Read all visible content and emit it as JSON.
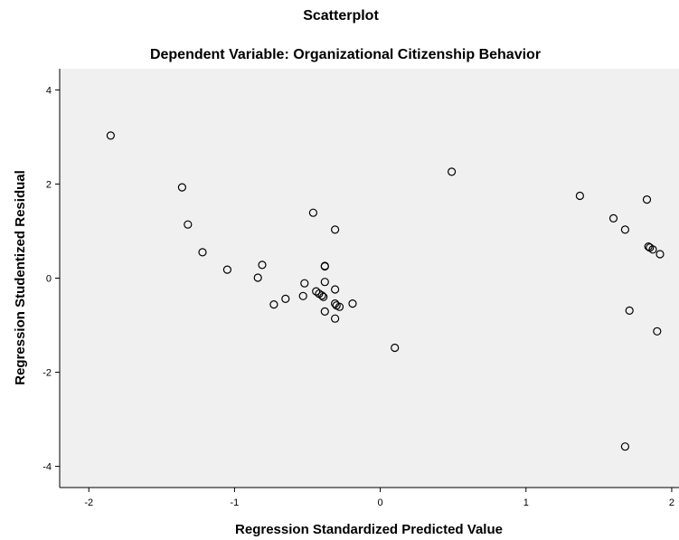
{
  "chart_data": {
    "type": "scatter",
    "title": "Scatterplot",
    "subtitle": "Dependent Variable: Organizational Citizenship Behavior",
    "xlabel": "Regression Standardized Predicted Value",
    "ylabel": "Regression Studentized Residual",
    "xlim": [
      -2.2,
      2.05
    ],
    "ylim": [
      -4.45,
      4.45
    ],
    "x_ticks": [
      -2,
      -1,
      0,
      1,
      2
    ],
    "y_ticks": [
      -4,
      -2,
      0,
      2,
      4
    ],
    "grid": false,
    "colors": {
      "plot_background": "#f0f0f0",
      "marker_edge": "#000000",
      "frame": "#000000"
    },
    "points": [
      {
        "x": -1.85,
        "y": 3.03
      },
      {
        "x": -1.36,
        "y": 1.93
      },
      {
        "x": -1.32,
        "y": 1.14
      },
      {
        "x": -1.22,
        "y": 0.55
      },
      {
        "x": -1.05,
        "y": 0.18
      },
      {
        "x": -0.81,
        "y": 0.28
      },
      {
        "x": -0.84,
        "y": 0.01
      },
      {
        "x": -0.73,
        "y": -0.56
      },
      {
        "x": -0.65,
        "y": -0.44
      },
      {
        "x": -0.52,
        "y": -0.11
      },
      {
        "x": -0.53,
        "y": -0.38
      },
      {
        "x": -0.46,
        "y": 1.39
      },
      {
        "x": -0.44,
        "y": -0.28
      },
      {
        "x": -0.42,
        "y": -0.33
      },
      {
        "x": -0.4,
        "y": -0.37
      },
      {
        "x": -0.39,
        "y": -0.4
      },
      {
        "x": -0.38,
        "y": 0.26
      },
      {
        "x": -0.38,
        "y": 0.25
      },
      {
        "x": -0.38,
        "y": -0.08
      },
      {
        "x": -0.38,
        "y": -0.71
      },
      {
        "x": -0.31,
        "y": 1.03
      },
      {
        "x": -0.31,
        "y": -0.24
      },
      {
        "x": -0.31,
        "y": -0.54
      },
      {
        "x": -0.31,
        "y": -0.86
      },
      {
        "x": -0.3,
        "y": -0.58
      },
      {
        "x": -0.28,
        "y": -0.61
      },
      {
        "x": -0.19,
        "y": -0.54
      },
      {
        "x": 0.1,
        "y": -1.48
      },
      {
        "x": 0.49,
        "y": 2.26
      },
      {
        "x": 1.37,
        "y": 1.75
      },
      {
        "x": 1.6,
        "y": 1.27
      },
      {
        "x": 1.68,
        "y": 1.03
      },
      {
        "x": 1.68,
        "y": -3.58
      },
      {
        "x": 1.71,
        "y": -0.69
      },
      {
        "x": 1.83,
        "y": 1.67
      },
      {
        "x": 1.84,
        "y": 0.67
      },
      {
        "x": 1.85,
        "y": 0.65
      },
      {
        "x": 1.87,
        "y": 0.61
      },
      {
        "x": 1.9,
        "y": -1.13
      },
      {
        "x": 1.92,
        "y": 0.51
      }
    ]
  }
}
